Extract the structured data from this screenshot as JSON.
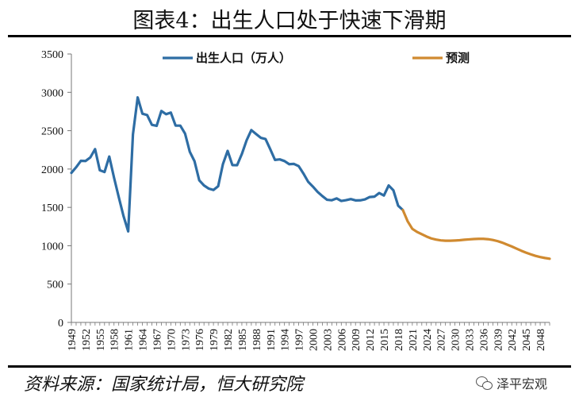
{
  "title": "图表4：出生人口处于快速下滑期",
  "source": "资料来源：国家统计局，恒大研究院",
  "watermark": "泽平宏观",
  "watermark_icon": "wechat-icon",
  "chart_data": {
    "type": "line",
    "title": "图表4：出生人口处于快速下滑期",
    "xlabel": "",
    "ylabel": "",
    "xlim": [
      1949,
      2050
    ],
    "ylim": [
      0,
      3500
    ],
    "yticks": [
      0,
      500,
      1000,
      1500,
      2000,
      2500,
      3000,
      3500
    ],
    "xticks": [
      1949,
      1952,
      1955,
      1958,
      1961,
      1964,
      1967,
      1970,
      1973,
      1976,
      1979,
      1982,
      1985,
      1988,
      1991,
      1994,
      1997,
      2000,
      2003,
      2006,
      2009,
      2012,
      2015,
      2018,
      2021,
      2024,
      2027,
      2030,
      2033,
      2036,
      2039,
      2042,
      2045,
      2048
    ],
    "grid": false,
    "legend_position": "top",
    "series": [
      {
        "name": "出生人口（万人）",
        "color": "#2E6DA4",
        "x": [
          1949,
          1950,
          1951,
          1952,
          1953,
          1954,
          1955,
          1956,
          1957,
          1958,
          1959,
          1960,
          1961,
          1962,
          1963,
          1964,
          1965,
          1966,
          1967,
          1968,
          1969,
          1970,
          1971,
          1972,
          1973,
          1974,
          1975,
          1976,
          1977,
          1978,
          1979,
          1980,
          1981,
          1982,
          1983,
          1984,
          1985,
          1986,
          1987,
          1988,
          1989,
          1990,
          1991,
          1992,
          1993,
          1994,
          1995,
          1996,
          1997,
          1998,
          1999,
          2000,
          2001,
          2002,
          2003,
          2004,
          2005,
          2006,
          2007,
          2008,
          2009,
          2010,
          2011,
          2012,
          2013,
          2014,
          2015,
          2016,
          2017,
          2018,
          2019
        ],
        "values": [
          1950,
          2023,
          2107,
          2105,
          2151,
          2260,
          1984,
          1961,
          2163,
          1889,
          1635,
          1389,
          1187,
          2451,
          2934,
          2721,
          2704,
          2577,
          2563,
          2757,
          2715,
          2736,
          2567,
          2566,
          2463,
          2226,
          2102,
          1853,
          1786,
          1745,
          1727,
          1776,
          2064,
          2237,
          2052,
          2050,
          2196,
          2374,
          2508,
          2457,
          2407,
          2391,
          2258,
          2119,
          2126,
          2104,
          2063,
          2067,
          2038,
          1942,
          1834,
          1771,
          1702,
          1647,
          1599,
          1593,
          1617,
          1584,
          1594,
          1608,
          1591,
          1592,
          1604,
          1635,
          1640,
          1687,
          1655,
          1786,
          1723,
          1523,
          1465
        ]
      },
      {
        "name": "预测",
        "color": "#D08A30",
        "x": [
          2019,
          2020,
          2021,
          2022,
          2023,
          2024,
          2025,
          2026,
          2027,
          2028,
          2029,
          2030,
          2031,
          2032,
          2033,
          2034,
          2035,
          2036,
          2037,
          2038,
          2039,
          2040,
          2041,
          2042,
          2043,
          2044,
          2045,
          2046,
          2047,
          2048,
          2049,
          2050
        ],
        "values": [
          1465,
          1320,
          1220,
          1180,
          1150,
          1120,
          1095,
          1080,
          1070,
          1065,
          1065,
          1068,
          1072,
          1078,
          1083,
          1087,
          1090,
          1090,
          1085,
          1075,
          1060,
          1040,
          1015,
          990,
          962,
          935,
          910,
          888,
          868,
          852,
          840,
          830
        ]
      }
    ]
  }
}
